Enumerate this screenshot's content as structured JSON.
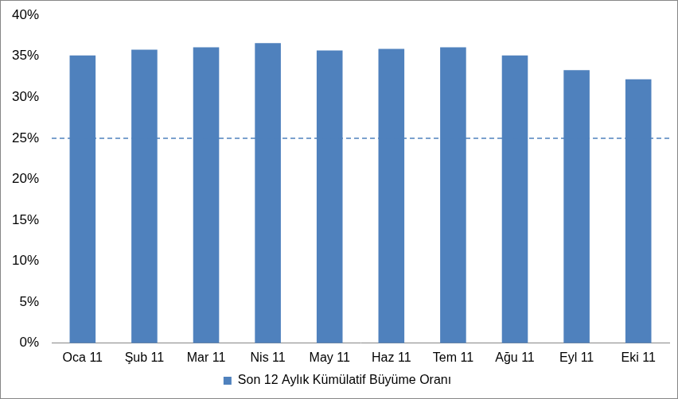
{
  "chart_data": {
    "type": "bar",
    "categories": [
      "Oca 11",
      "Şub 11",
      "Mar 11",
      "Nis 11",
      "May 11",
      "Haz 11",
      "Tem 11",
      "Ağu 11",
      "Eyl 11",
      "Eki 11"
    ],
    "series": [
      {
        "name": "Son 12 Aylık Kümülatif Büyüme Oranı",
        "color": "#4f81bd",
        "values": [
          35.1,
          35.8,
          36.1,
          36.6,
          35.7,
          35.9,
          36.1,
          35.1,
          33.3,
          32.2
        ]
      }
    ],
    "ylim": [
      0,
      40
    ],
    "yticks": [
      {
        "value": 0,
        "label": "0%"
      },
      {
        "value": 5,
        "label": "5%"
      },
      {
        "value": 10,
        "label": "10%"
      },
      {
        "value": 15,
        "label": "15%"
      },
      {
        "value": 20,
        "label": "20%"
      },
      {
        "value": 25,
        "label": "25%"
      },
      {
        "value": 30,
        "label": "30%"
      },
      {
        "value": 35,
        "label": "35%"
      },
      {
        "value": 40,
        "label": "40%"
      }
    ],
    "reference_line": 25,
    "grid": false,
    "legend": "bottom"
  }
}
